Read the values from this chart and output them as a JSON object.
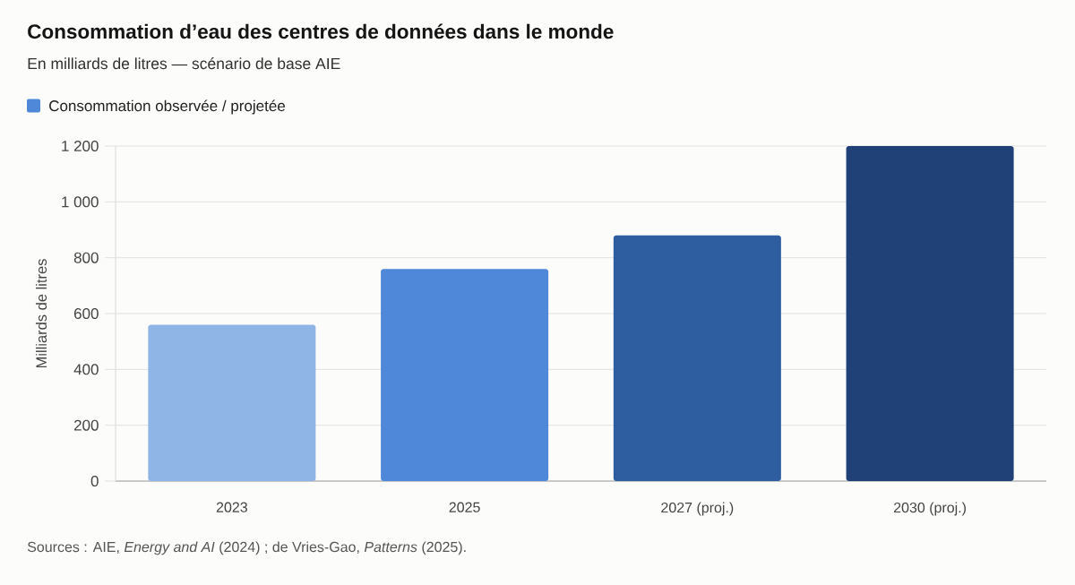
{
  "chart_data": {
    "type": "bar",
    "title": "Consommation d’eau des centres de données dans le monde",
    "subtitle": "En milliards de litres — scénario de base AIE",
    "ylabel": "Milliards de litres",
    "annotations": [
      "Sources : AIE, *Energy and AI* (2024) ; de Vries-Gao, *Patterns* (2025)."
    ],
    "categories": [
      "2023",
      "2025",
      "2027 (proj.)",
      "2030 (proj.)"
    ],
    "series": [
      {
        "name": "Consommation observée / projetée",
        "color": "#4f88d8",
        "colors": [
          "#8fb4e6",
          "#4f88d8",
          "#2e5e9f",
          "#1f4177"
        ],
        "values": [
          560,
          760,
          880,
          1200
        ]
      }
    ],
    "ylim": [
      0,
      1200
    ],
    "yticks": [
      0,
      200,
      400,
      600,
      800,
      {
        "value": 1000,
        "label": "1 000"
      },
      {
        "value": 1200,
        "label": "1 200"
      }
    ],
    "grid": "y",
    "legend": "top left"
  }
}
